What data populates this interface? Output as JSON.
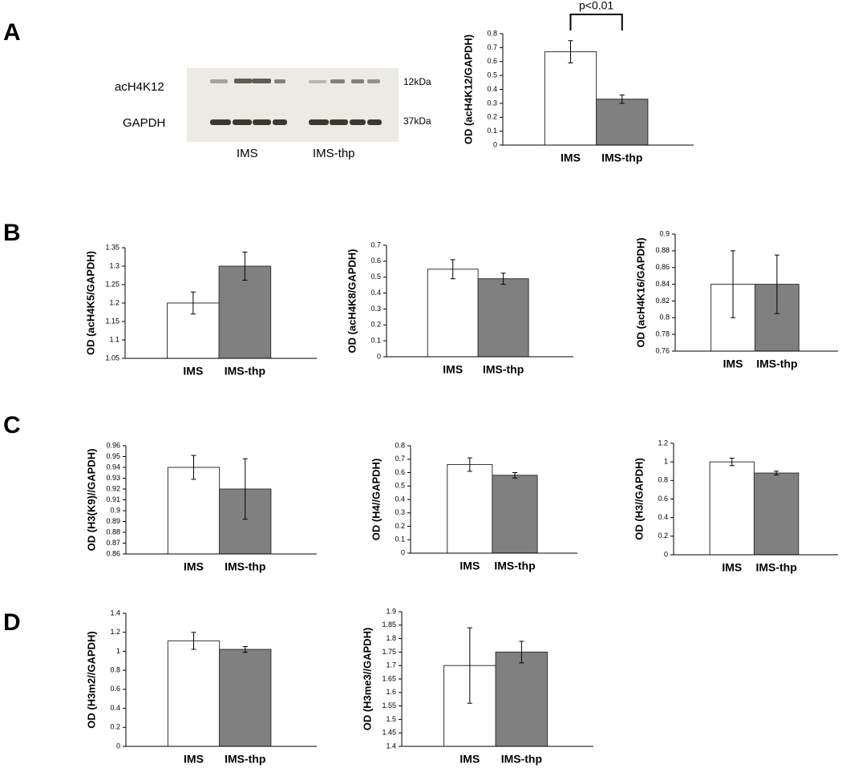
{
  "panels": [
    "A",
    "B",
    "C",
    "D"
  ],
  "blot": {
    "bands": [
      "acH4K12",
      "GAPDH"
    ],
    "sizes": [
      "12kDa",
      "37kDa"
    ],
    "lanes": [
      "IMS",
      "IMS-thp"
    ]
  },
  "chart_data": [
    {
      "type": "bar",
      "y_label": "OD (acH4K12/GAPDH)",
      "annotation": "p<0.01",
      "categories": [
        "IMS",
        "IMS-thp"
      ],
      "values": [
        0.67,
        0.33
      ],
      "errors": [
        0.08,
        0.03
      ],
      "colors": [
        "#ffffff",
        "#808080"
      ],
      "ylim": [
        0,
        0.8
      ],
      "yticks": [
        0,
        0.1,
        0.2,
        0.3,
        0.4,
        0.5,
        0.6,
        0.7,
        0.8
      ]
    },
    {
      "type": "bar",
      "y_label": "OD (acH4K5/GAPDH)",
      "categories": [
        "IMS",
        "IMS-thp"
      ],
      "values": [
        1.2,
        1.3
      ],
      "errors": [
        0.03,
        0.038
      ],
      "colors": [
        "#ffffff",
        "#808080"
      ],
      "ylim": [
        1.05,
        1.35
      ],
      "yticks": [
        1.05,
        1.1,
        1.15,
        1.2,
        1.25,
        1.3,
        1.35
      ]
    },
    {
      "type": "bar",
      "y_label": "OD (acH4K8/GAPDH)",
      "categories": [
        "IMS",
        "IMS-thp"
      ],
      "values": [
        0.55,
        0.49
      ],
      "errors": [
        0.06,
        0.035
      ],
      "colors": [
        "#ffffff",
        "#808080"
      ],
      "ylim": [
        0,
        0.7
      ],
      "yticks": [
        0,
        0.1,
        0.2,
        0.3,
        0.4,
        0.5,
        0.6,
        0.7
      ]
    },
    {
      "type": "bar",
      "y_label": "OD (acH4K16/GAPDH)",
      "categories": [
        "IMS",
        "IMS-thp"
      ],
      "values": [
        0.84,
        0.84
      ],
      "errors": [
        0.04,
        0.035
      ],
      "colors": [
        "#ffffff",
        "#808080"
      ],
      "ylim": [
        0.76,
        0.9
      ],
      "yticks": [
        0.76,
        0.78,
        0.8,
        0.82,
        0.84,
        0.86,
        0.88,
        0.9
      ]
    },
    {
      "type": "bar",
      "y_label": "OD (H3(K9)//GAPDH)",
      "categories": [
        "IMS",
        "IMS-thp"
      ],
      "values": [
        0.94,
        0.92
      ],
      "errors": [
        0.011,
        0.028
      ],
      "colors": [
        "#ffffff",
        "#808080"
      ],
      "ylim": [
        0.86,
        0.96
      ],
      "yticks": [
        0.86,
        0.87,
        0.88,
        0.89,
        0.9,
        0.91,
        0.92,
        0.93,
        0.94,
        0.95,
        0.96
      ]
    },
    {
      "type": "bar",
      "y_label": "OD (H4//GAPDH)",
      "categories": [
        "IMS",
        "IMS-thp"
      ],
      "values": [
        0.66,
        0.58
      ],
      "errors": [
        0.05,
        0.02
      ],
      "colors": [
        "#ffffff",
        "#808080"
      ],
      "ylim": [
        0,
        0.8
      ],
      "yticks": [
        0,
        0.1,
        0.2,
        0.3,
        0.4,
        0.5,
        0.6,
        0.7,
        0.8
      ]
    },
    {
      "type": "bar",
      "y_label": "OD (H3//GAPDH)",
      "categories": [
        "IMS",
        "IMS-thp"
      ],
      "values": [
        1.0,
        0.88
      ],
      "errors": [
        0.04,
        0.02
      ],
      "colors": [
        "#ffffff",
        "#808080"
      ],
      "ylim": [
        0,
        1.2
      ],
      "yticks": [
        0,
        0.2,
        0.4,
        0.6,
        0.8,
        1,
        1.2
      ]
    },
    {
      "type": "bar",
      "y_label": "OD (H3m2//GAPDH)",
      "categories": [
        "IMS",
        "IMS-thp"
      ],
      "values": [
        1.11,
        1.02
      ],
      "errors": [
        0.09,
        0.03
      ],
      "colors": [
        "#ffffff",
        "#808080"
      ],
      "ylim": [
        0,
        1.4
      ],
      "yticks": [
        0,
        0.2,
        0.4,
        0.6,
        0.8,
        1,
        1.2,
        1.4
      ]
    },
    {
      "type": "bar",
      "y_label": "OD (H3me3//GAPDH)",
      "categories": [
        "IMS",
        "IMS-thp"
      ],
      "values": [
        1.7,
        1.75
      ],
      "errors": [
        0.14,
        0.04
      ],
      "colors": [
        "#ffffff",
        "#808080"
      ],
      "ylim": [
        1.4,
        1.9
      ],
      "yticks": [
        1.4,
        1.45,
        1.5,
        1.55,
        1.6,
        1.65,
        1.7,
        1.75,
        1.8,
        1.85,
        1.9
      ]
    }
  ]
}
